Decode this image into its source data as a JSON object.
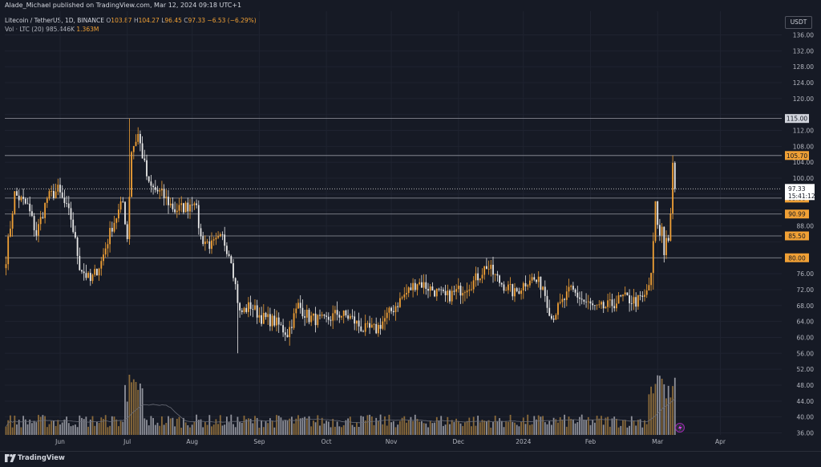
{
  "attribution": "Alade_Michael published on TradingView.com, Mar 12, 2024 09:18 UTC+1",
  "legend": {
    "symbol": "Litecoin / TetherUS, 1D, BINANCE",
    "o_label": "O",
    "o": "103.87",
    "h_label": "H",
    "h": "104.27",
    "l_label": "L",
    "l": "96.45",
    "c_label": "C",
    "c": "97.33",
    "change": "−6.53 (−6.29%)",
    "vol_label": "Vol · LTC (20)",
    "vol_ma": "985.446K",
    "vol": "1.363M"
  },
  "currency": "USDT",
  "branding": "TradingView",
  "colors": {
    "up": "#f0a035",
    "down": "#e8e8e8",
    "background": "#161a25",
    "grid": "#1f2330",
    "text": "#d1d4dc"
  },
  "chart_data": {
    "type": "candlestick",
    "symbol": "LTCUSDT",
    "interval": "1D",
    "ylim": [
      36,
      136
    ],
    "y_ticks": [
      36,
      40,
      44,
      48,
      52,
      56,
      60,
      64,
      68,
      72,
      76,
      80,
      84,
      88,
      92,
      96,
      100,
      104,
      108,
      112,
      116,
      120,
      124,
      128,
      132,
      136
    ],
    "x_ticks": [
      "Jun",
      "Jul",
      "Aug",
      "Sep",
      "Oct",
      "Nov",
      "Dec",
      "2024",
      "Feb",
      "Mar",
      "Apr"
    ],
    "horizontal_levels": [
      115.0,
      105.7,
      95.0,
      90.99,
      85.5,
      80.0
    ],
    "last_price": 97.33,
    "countdown": "15:41:12",
    "anchors": [
      {
        "d": 0,
        "p": 80
      },
      {
        "d": 4,
        "p": 96
      },
      {
        "d": 10,
        "p": 93
      },
      {
        "d": 14,
        "p": 86
      },
      {
        "d": 19,
        "p": 95
      },
      {
        "d": 24,
        "p": 97
      },
      {
        "d": 30,
        "p": 90
      },
      {
        "d": 34,
        "p": 78
      },
      {
        "d": 39,
        "p": 74
      },
      {
        "d": 44,
        "p": 79
      },
      {
        "d": 49,
        "p": 88
      },
      {
        "d": 54,
        "p": 94
      },
      {
        "d": 56,
        "p": 85
      },
      {
        "d": 58,
        "p": 107
      },
      {
        "d": 61,
        "p": 111
      },
      {
        "d": 66,
        "p": 98
      },
      {
        "d": 72,
        "p": 96
      },
      {
        "d": 78,
        "p": 92
      },
      {
        "d": 84,
        "p": 93
      },
      {
        "d": 87,
        "p": 95
      },
      {
        "d": 90,
        "p": 85
      },
      {
        "d": 95,
        "p": 83
      },
      {
        "d": 100,
        "p": 85
      },
      {
        "d": 104,
        "p": 80
      },
      {
        "d": 108,
        "p": 66
      },
      {
        "d": 113,
        "p": 68
      },
      {
        "d": 118,
        "p": 65
      },
      {
        "d": 124,
        "p": 64
      },
      {
        "d": 130,
        "p": 61
      },
      {
        "d": 135,
        "p": 68
      },
      {
        "d": 140,
        "p": 65
      },
      {
        "d": 147,
        "p": 64
      },
      {
        "d": 153,
        "p": 66
      },
      {
        "d": 159,
        "p": 65
      },
      {
        "d": 165,
        "p": 62
      },
      {
        "d": 171,
        "p": 62
      },
      {
        "d": 177,
        "p": 66
      },
      {
        "d": 183,
        "p": 70
      },
      {
        "d": 190,
        "p": 74
      },
      {
        "d": 197,
        "p": 72
      },
      {
        "d": 203,
        "p": 70
      },
      {
        "d": 210,
        "p": 72
      },
      {
        "d": 216,
        "p": 74
      },
      {
        "d": 222,
        "p": 78
      },
      {
        "d": 228,
        "p": 74
      },
      {
        "d": 235,
        "p": 71
      },
      {
        "d": 242,
        "p": 75
      },
      {
        "d": 248,
        "p": 73
      },
      {
        "d": 252,
        "p": 65
      },
      {
        "d": 256,
        "p": 68
      },
      {
        "d": 261,
        "p": 72
      },
      {
        "d": 267,
        "p": 69
      },
      {
        "d": 273,
        "p": 67
      },
      {
        "d": 279,
        "p": 68
      },
      {
        "d": 285,
        "p": 70
      },
      {
        "d": 291,
        "p": 69
      },
      {
        "d": 295,
        "p": 70
      },
      {
        "d": 298,
        "p": 75
      },
      {
        "d": 300,
        "p": 93
      },
      {
        "d": 302,
        "p": 85
      },
      {
        "d": 303,
        "p": 88
      },
      {
        "d": 304,
        "p": 81
      },
      {
        "d": 305,
        "p": 86
      },
      {
        "d": 306,
        "p": 84
      },
      {
        "d": 307,
        "p": 92
      },
      {
        "d": 308,
        "p": 103.87
      }
    ]
  }
}
